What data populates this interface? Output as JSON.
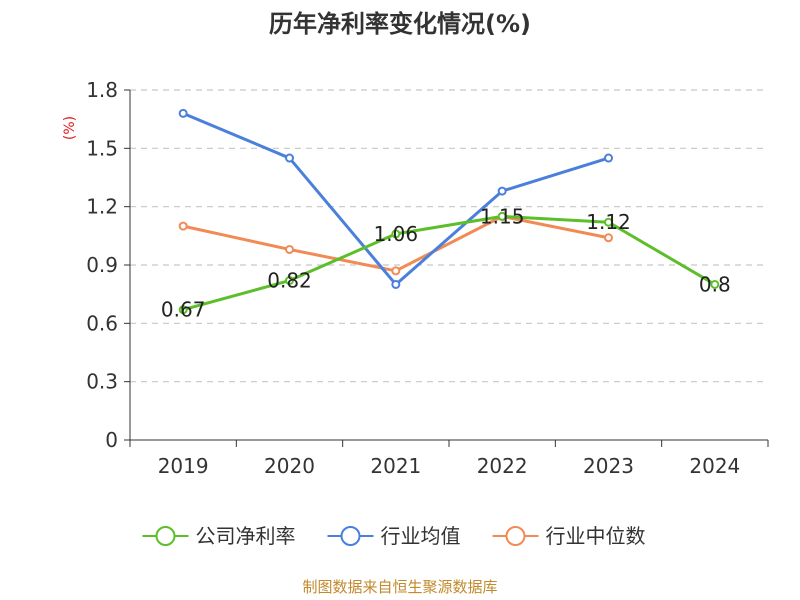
{
  "chart_data": {
    "type": "line",
    "title": "历年净利率变化情况(%)",
    "ylabel": "(%)",
    "xlabel": "",
    "categories": [
      "2019",
      "2020",
      "2021",
      "2022",
      "2023",
      "2024"
    ],
    "ylim": [
      0,
      1.8
    ],
    "yticks": [
      "0",
      "0.3",
      "0.6",
      "0.9",
      "1.2",
      "1.5",
      "1.8"
    ],
    "ytick_values": [
      0,
      0.3,
      0.6,
      0.9,
      1.2,
      1.5,
      1.8
    ],
    "grid": true,
    "legend_position": "bottom",
    "series": [
      {
        "name": "公司净利率",
        "color": "#5cbf2a",
        "values": [
          0.67,
          0.82,
          1.06,
          1.15,
          1.12,
          0.8
        ],
        "data_labels": [
          "0.67",
          "0.82",
          "1.06",
          "1.15",
          "1.12",
          "0.8"
        ]
      },
      {
        "name": "行业均值",
        "color": "#4a7fdc",
        "values": [
          1.68,
          1.45,
          0.8,
          1.28,
          1.45,
          null
        ]
      },
      {
        "name": "行业中位数",
        "color": "#f28a55",
        "values": [
          1.1,
          0.98,
          0.87,
          1.15,
          1.04,
          null
        ]
      }
    ],
    "source": "制图数据来自恒生聚源数据库"
  }
}
